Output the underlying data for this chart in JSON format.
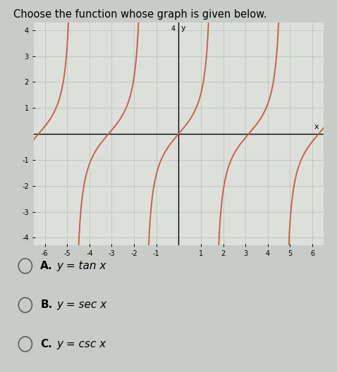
{
  "title": "Choose the function whose graph is given below.",
  "title_fontsize": 10.5,
  "background_color": "#c8ccc8",
  "graph_bg_color": "#dde0da",
  "curve_color": "#c86050",
  "curve_linewidth": 1.4,
  "xlim": [
    -6.5,
    6.5
  ],
  "ylim": [
    -4.3,
    4.3
  ],
  "xticks": [
    -6,
    -5,
    -4,
    -3,
    -2,
    -1,
    1,
    2,
    3,
    4,
    5,
    6
  ],
  "yticks": [
    -4,
    -3,
    -2,
    -1,
    1,
    2,
    3,
    4
  ],
  "xlabel": "x",
  "ylabel": "y",
  "tick_fontsize": 7,
  "options": [
    {
      "label": "A.",
      "math": "y = tan x"
    },
    {
      "label": "B.",
      "math": "y = sec x"
    },
    {
      "label": "C.",
      "math": "y = csc x"
    }
  ],
  "options_fontsize": 11
}
